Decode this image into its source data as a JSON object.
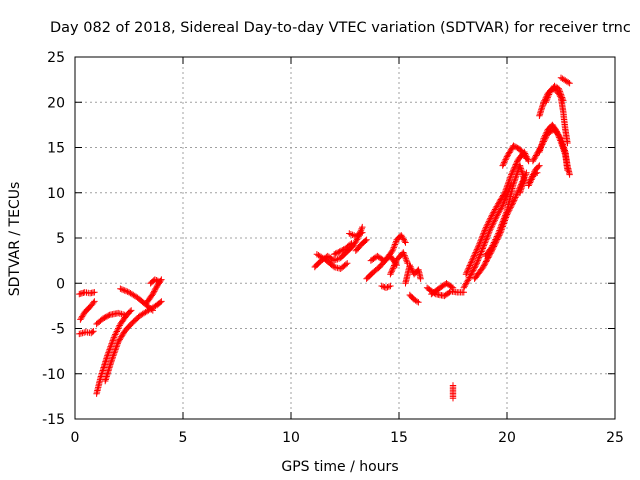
{
  "chart_data": {
    "type": "scatter",
    "title": "Day 082 of 2018, Sidereal Day-to-day VTEC variation (SDTVAR) for receiver trnc",
    "xlabel": "GPS time / hours",
    "ylabel": "SDTVAR / TECUs",
    "xlim": [
      0,
      25
    ],
    "ylim": [
      -15,
      25
    ],
    "x_ticks": [
      0,
      5,
      10,
      15,
      20,
      25
    ],
    "y_ticks": [
      -15,
      -10,
      -5,
      0,
      5,
      10,
      15,
      20,
      25
    ],
    "x_tick_labels": [
      "0",
      "5",
      "10",
      "15",
      "20",
      "25"
    ],
    "y_tick_labels": [
      "-15",
      "-10",
      "-5",
      "0",
      "5",
      "10",
      "15",
      "20",
      "25"
    ],
    "grid": true,
    "marker": "+",
    "color": "#ff0000",
    "tracks": [
      {
        "points": [
          [
            0.2,
            -1.2
          ],
          [
            0.45,
            -1.0
          ],
          [
            0.7,
            -1.1
          ],
          [
            0.9,
            -1.0
          ]
        ]
      },
      {
        "points": [
          [
            0.2,
            -5.6
          ],
          [
            0.5,
            -5.4
          ],
          [
            0.75,
            -5.5
          ],
          [
            0.85,
            -5.3
          ]
        ]
      },
      {
        "points": [
          [
            0.25,
            -4.0
          ],
          [
            0.45,
            -3.2
          ],
          [
            0.7,
            -2.6
          ],
          [
            0.9,
            -2.0
          ]
        ]
      },
      {
        "points": [
          [
            1.0,
            -12.2
          ],
          [
            1.2,
            -10.3
          ],
          [
            1.5,
            -8.0
          ],
          [
            1.8,
            -6.0
          ],
          [
            2.1,
            -4.5
          ],
          [
            2.4,
            -3.5
          ],
          [
            2.6,
            -3.0
          ]
        ]
      },
      {
        "points": [
          [
            1.4,
            -10.8
          ],
          [
            1.7,
            -8.5
          ],
          [
            2.0,
            -6.5
          ],
          [
            2.3,
            -5.3
          ],
          [
            2.6,
            -4.5
          ],
          [
            3.0,
            -3.6
          ],
          [
            3.4,
            -3.0
          ],
          [
            3.8,
            -2.4
          ],
          [
            4.0,
            -2.0
          ]
        ]
      },
      {
        "points": [
          [
            1.0,
            -4.5
          ],
          [
            1.3,
            -3.9
          ],
          [
            1.6,
            -3.5
          ],
          [
            2.0,
            -3.3
          ],
          [
            2.3,
            -3.5
          ]
        ]
      },
      {
        "points": [
          [
            2.1,
            -0.6
          ],
          [
            2.5,
            -1.0
          ],
          [
            2.9,
            -1.6
          ],
          [
            3.3,
            -2.4
          ],
          [
            3.6,
            -3.0
          ]
        ]
      },
      {
        "points": [
          [
            3.3,
            -2.2
          ],
          [
            3.6,
            -1.2
          ],
          [
            3.8,
            -0.3
          ],
          [
            4.0,
            0.4
          ]
        ]
      },
      {
        "points": [
          [
            3.5,
            0.0
          ],
          [
            3.7,
            0.4
          ],
          [
            3.9,
            0.2
          ]
        ]
      },
      {
        "points": [
          [
            11.1,
            1.8
          ],
          [
            11.4,
            2.5
          ],
          [
            11.7,
            3.0
          ],
          [
            12.0,
            2.5
          ],
          [
            12.3,
            2.8
          ],
          [
            12.6,
            3.5
          ],
          [
            12.9,
            4.2
          ],
          [
            13.1,
            5.0
          ],
          [
            13.3,
            6.2
          ]
        ]
      },
      {
        "points": [
          [
            11.2,
            3.2
          ],
          [
            11.6,
            2.6
          ],
          [
            12.0,
            1.8
          ],
          [
            12.3,
            1.6
          ],
          [
            12.6,
            2.2
          ]
        ]
      },
      {
        "points": [
          [
            13.0,
            3.6
          ],
          [
            13.3,
            4.4
          ],
          [
            13.5,
            4.8
          ]
        ]
      },
      {
        "points": [
          [
            12.7,
            5.5
          ],
          [
            13.0,
            5.2
          ],
          [
            13.3,
            5.6
          ]
        ]
      },
      {
        "points": [
          [
            12.0,
            3.2
          ],
          [
            12.5,
            3.8
          ],
          [
            12.8,
            4.4
          ]
        ]
      },
      {
        "points": [
          [
            13.5,
            0.5
          ],
          [
            13.8,
            1.2
          ],
          [
            14.1,
            1.8
          ],
          [
            14.4,
            2.6
          ],
          [
            14.7,
            3.6
          ],
          [
            14.9,
            4.8
          ],
          [
            15.1,
            5.3
          ],
          [
            15.3,
            4.5
          ]
        ]
      },
      {
        "points": [
          [
            13.7,
            2.5
          ],
          [
            14.0,
            3.0
          ],
          [
            14.3,
            2.5
          ],
          [
            14.6,
            3.0
          ],
          [
            14.9,
            2.0
          ]
        ]
      },
      {
        "points": [
          [
            14.2,
            -0.3
          ],
          [
            14.4,
            -0.5
          ],
          [
            14.6,
            -0.3
          ]
        ]
      },
      {
        "points": [
          [
            14.6,
            1.0
          ],
          [
            14.9,
            2.6
          ],
          [
            15.2,
            3.4
          ],
          [
            15.4,
            2.2
          ]
        ]
      },
      {
        "points": [
          [
            15.3,
            0.0
          ],
          [
            15.5,
            2.0
          ],
          [
            15.7,
            1.0
          ],
          [
            15.9,
            1.5
          ],
          [
            16.0,
            0.5
          ]
        ]
      },
      {
        "points": [
          [
            15.5,
            -1.3
          ],
          [
            15.7,
            -1.8
          ],
          [
            15.9,
            -2.1
          ]
        ]
      },
      {
        "points": [
          [
            16.3,
            -0.5
          ],
          [
            16.7,
            -1.2
          ],
          [
            17.1,
            -1.4
          ],
          [
            17.4,
            -0.9
          ],
          [
            17.7,
            -1.0
          ],
          [
            18.0,
            -1.0
          ]
        ]
      },
      {
        "points": [
          [
            16.5,
            -1.2
          ],
          [
            16.9,
            -0.5
          ],
          [
            17.2,
            0.0
          ],
          [
            17.5,
            -0.5
          ]
        ]
      },
      {
        "points": [
          [
            17.5,
            -11.3
          ],
          [
            17.5,
            -12.0
          ],
          [
            17.5,
            -12.7
          ]
        ]
      },
      {
        "points": [
          [
            18.0,
            -0.5
          ],
          [
            18.3,
            0.8
          ],
          [
            18.6,
            2.2
          ],
          [
            18.9,
            4.0
          ],
          [
            19.2,
            5.8
          ],
          [
            19.5,
            7.3
          ],
          [
            19.8,
            8.6
          ],
          [
            20.0,
            9.8
          ],
          [
            20.2,
            11.0
          ]
        ]
      },
      {
        "points": [
          [
            18.1,
            1.0
          ],
          [
            18.4,
            2.6
          ],
          [
            18.7,
            4.2
          ],
          [
            19.0,
            6.0
          ],
          [
            19.3,
            7.5
          ],
          [
            19.6,
            8.8
          ],
          [
            19.9,
            10.0
          ],
          [
            20.2,
            12.0
          ],
          [
            20.5,
            13.6
          ],
          [
            20.8,
            14.5
          ],
          [
            21.0,
            13.5
          ]
        ]
      },
      {
        "points": [
          [
            18.5,
            0.5
          ],
          [
            18.9,
            1.8
          ],
          [
            19.3,
            3.6
          ],
          [
            19.7,
            5.6
          ],
          [
            20.0,
            7.6
          ],
          [
            20.3,
            9.0
          ],
          [
            20.6,
            10.6
          ],
          [
            20.9,
            12.2
          ]
        ]
      },
      {
        "points": [
          [
            19.0,
            3.0
          ],
          [
            19.3,
            4.0
          ],
          [
            19.6,
            5.5
          ],
          [
            20.0,
            8.0
          ],
          [
            20.3,
            11.0
          ],
          [
            20.6,
            13.0
          ],
          [
            20.8,
            11.5
          ],
          [
            20.6,
            10.0
          ]
        ]
      },
      {
        "points": [
          [
            19.8,
            13.0
          ],
          [
            20.0,
            14.0
          ],
          [
            20.3,
            15.2
          ],
          [
            20.6,
            14.8
          ],
          [
            20.9,
            13.8
          ]
        ]
      },
      {
        "points": [
          [
            21.0,
            10.8
          ],
          [
            21.2,
            11.8
          ],
          [
            21.3,
            12.5
          ],
          [
            21.5,
            13.0
          ]
        ]
      },
      {
        "points": [
          [
            21.5,
            14.5
          ],
          [
            21.7,
            16.0
          ],
          [
            21.9,
            17.0
          ],
          [
            22.1,
            17.5
          ],
          [
            22.3,
            16.8
          ],
          [
            22.5,
            15.6
          ],
          [
            22.7,
            14.2
          ],
          [
            22.8,
            12.5
          ]
        ]
      },
      {
        "points": [
          [
            21.2,
            13.5
          ],
          [
            21.6,
            15.2
          ],
          [
            21.9,
            16.6
          ],
          [
            22.2,
            17.0
          ],
          [
            22.5,
            16.0
          ],
          [
            22.7,
            14.5
          ],
          [
            22.8,
            13.0
          ],
          [
            22.9,
            12.0
          ]
        ]
      },
      {
        "points": [
          [
            21.5,
            18.5
          ],
          [
            21.7,
            20.0
          ],
          [
            21.9,
            21.0
          ],
          [
            22.1,
            21.5
          ],
          [
            22.3,
            21.3
          ],
          [
            22.5,
            20.5
          ],
          [
            22.6,
            19.0
          ],
          [
            22.7,
            17.0
          ],
          [
            22.8,
            15.5
          ]
        ]
      },
      {
        "points": [
          [
            21.8,
            20.0
          ],
          [
            22.0,
            21.2
          ],
          [
            22.2,
            21.8
          ],
          [
            22.4,
            21.5
          ],
          [
            22.6,
            20.2
          ]
        ]
      },
      {
        "points": [
          [
            22.5,
            22.7
          ],
          [
            22.7,
            22.4
          ],
          [
            22.9,
            22.1
          ]
        ]
      },
      {
        "points": [
          [
            21.0,
            11.0
          ],
          [
            21.2,
            12.0
          ],
          [
            21.4,
            12.2
          ]
        ]
      }
    ]
  }
}
